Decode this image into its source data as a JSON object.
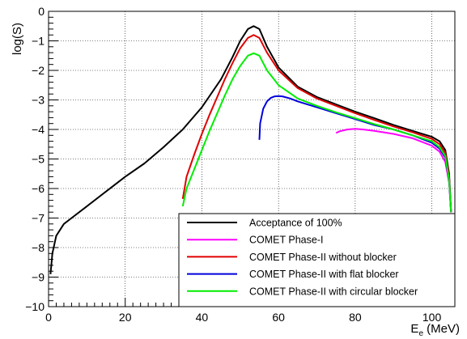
{
  "chart_data": {
    "type": "line",
    "xlabel": "E",
    "xlabel_sub": "e",
    "xlabel_unit": " (MeV)",
    "ylabel": "log(S)",
    "xlim": [
      0,
      106
    ],
    "ylim": [
      -10,
      0
    ],
    "xticks": [
      0,
      20,
      40,
      60,
      80,
      100
    ],
    "yticks": [
      0,
      -1,
      -2,
      -3,
      -4,
      -5,
      -6,
      -7,
      -8,
      -9,
      -10
    ],
    "ytick_labels": [
      "0",
      "−1",
      "−2",
      "−3",
      "−4",
      "−5",
      "−6",
      "−7",
      "−8",
      "−9",
      "−10"
    ],
    "grid": true,
    "legend_position": "bottom-right",
    "series": [
      {
        "name": "Acceptance of 100%",
        "color": "#000000",
        "x": [
          0.5,
          1,
          2,
          4,
          6,
          10,
          15,
          20,
          25,
          30,
          35,
          40,
          45,
          48,
          50,
          52,
          53.5,
          55,
          57,
          60,
          65,
          70,
          75,
          80,
          85,
          90,
          95,
          100,
          102,
          103.5,
          104.5,
          105
        ],
        "y": [
          -8.9,
          -8.2,
          -7.6,
          -7.2,
          -7.0,
          -6.6,
          -6.1,
          -5.6,
          -5.15,
          -4.6,
          -4.0,
          -3.25,
          -2.3,
          -1.55,
          -1.0,
          -0.6,
          -0.5,
          -0.6,
          -1.2,
          -1.9,
          -2.55,
          -2.9,
          -3.15,
          -3.4,
          -3.62,
          -3.85,
          -4.05,
          -4.25,
          -4.4,
          -4.7,
          -5.5,
          -6.8
        ]
      },
      {
        "name": "COMET Phase-I",
        "color": "#ff00ff",
        "x": [
          75,
          76,
          78,
          80,
          82,
          85,
          90,
          95,
          100,
          102,
          103.5,
          104.5,
          105
        ],
        "y": [
          -4.12,
          -4.06,
          -4.0,
          -3.98,
          -4.0,
          -4.05,
          -4.15,
          -4.3,
          -4.55,
          -4.75,
          -5.1,
          -5.8,
          -6.8
        ]
      },
      {
        "name": "COMET Phase-II without blocker",
        "color": "#e00000",
        "x": [
          35,
          36,
          38,
          40,
          42,
          44,
          46,
          48,
          50,
          52,
          53.5,
          55,
          57,
          60,
          65,
          70,
          75,
          80,
          85,
          90,
          95,
          100,
          102,
          103.5,
          104.5,
          105
        ],
        "y": [
          -6.35,
          -5.6,
          -4.85,
          -4.15,
          -3.5,
          -2.9,
          -2.3,
          -1.75,
          -1.25,
          -0.9,
          -0.8,
          -0.9,
          -1.4,
          -2.0,
          -2.6,
          -2.95,
          -3.2,
          -3.45,
          -3.68,
          -3.9,
          -4.1,
          -4.32,
          -4.5,
          -4.8,
          -5.6,
          -6.8
        ]
      },
      {
        "name": "COMET Phase-II with flat blocker",
        "color": "#0000dd",
        "x": [
          55,
          55.2,
          56,
          57,
          58,
          59,
          60,
          61,
          63,
          65,
          70,
          75,
          80,
          85,
          90,
          95,
          100,
          102,
          103.5,
          104.5,
          105
        ],
        "y": [
          -4.35,
          -3.8,
          -3.3,
          -3.05,
          -2.93,
          -2.88,
          -2.87,
          -2.88,
          -2.95,
          -3.05,
          -3.25,
          -3.45,
          -3.65,
          -3.85,
          -4.0,
          -4.2,
          -4.45,
          -4.65,
          -4.95,
          -5.7,
          -6.8
        ]
      },
      {
        "name": "COMET Phase-II with circular blocker",
        "color": "#00ee00",
        "x": [
          35,
          36,
          38,
          40,
          42,
          44,
          46,
          48,
          50,
          52,
          53.5,
          55,
          57,
          60,
          65,
          70,
          75,
          80,
          85,
          90,
          95,
          100,
          102,
          103.5,
          104.5,
          105
        ],
        "y": [
          -6.6,
          -6.0,
          -5.35,
          -4.7,
          -4.05,
          -3.45,
          -2.85,
          -2.3,
          -1.85,
          -1.5,
          -1.42,
          -1.5,
          -2.0,
          -2.5,
          -2.95,
          -3.2,
          -3.42,
          -3.62,
          -3.82,
          -4.0,
          -4.2,
          -4.4,
          -4.6,
          -4.9,
          -5.7,
          -6.8
        ]
      }
    ]
  }
}
